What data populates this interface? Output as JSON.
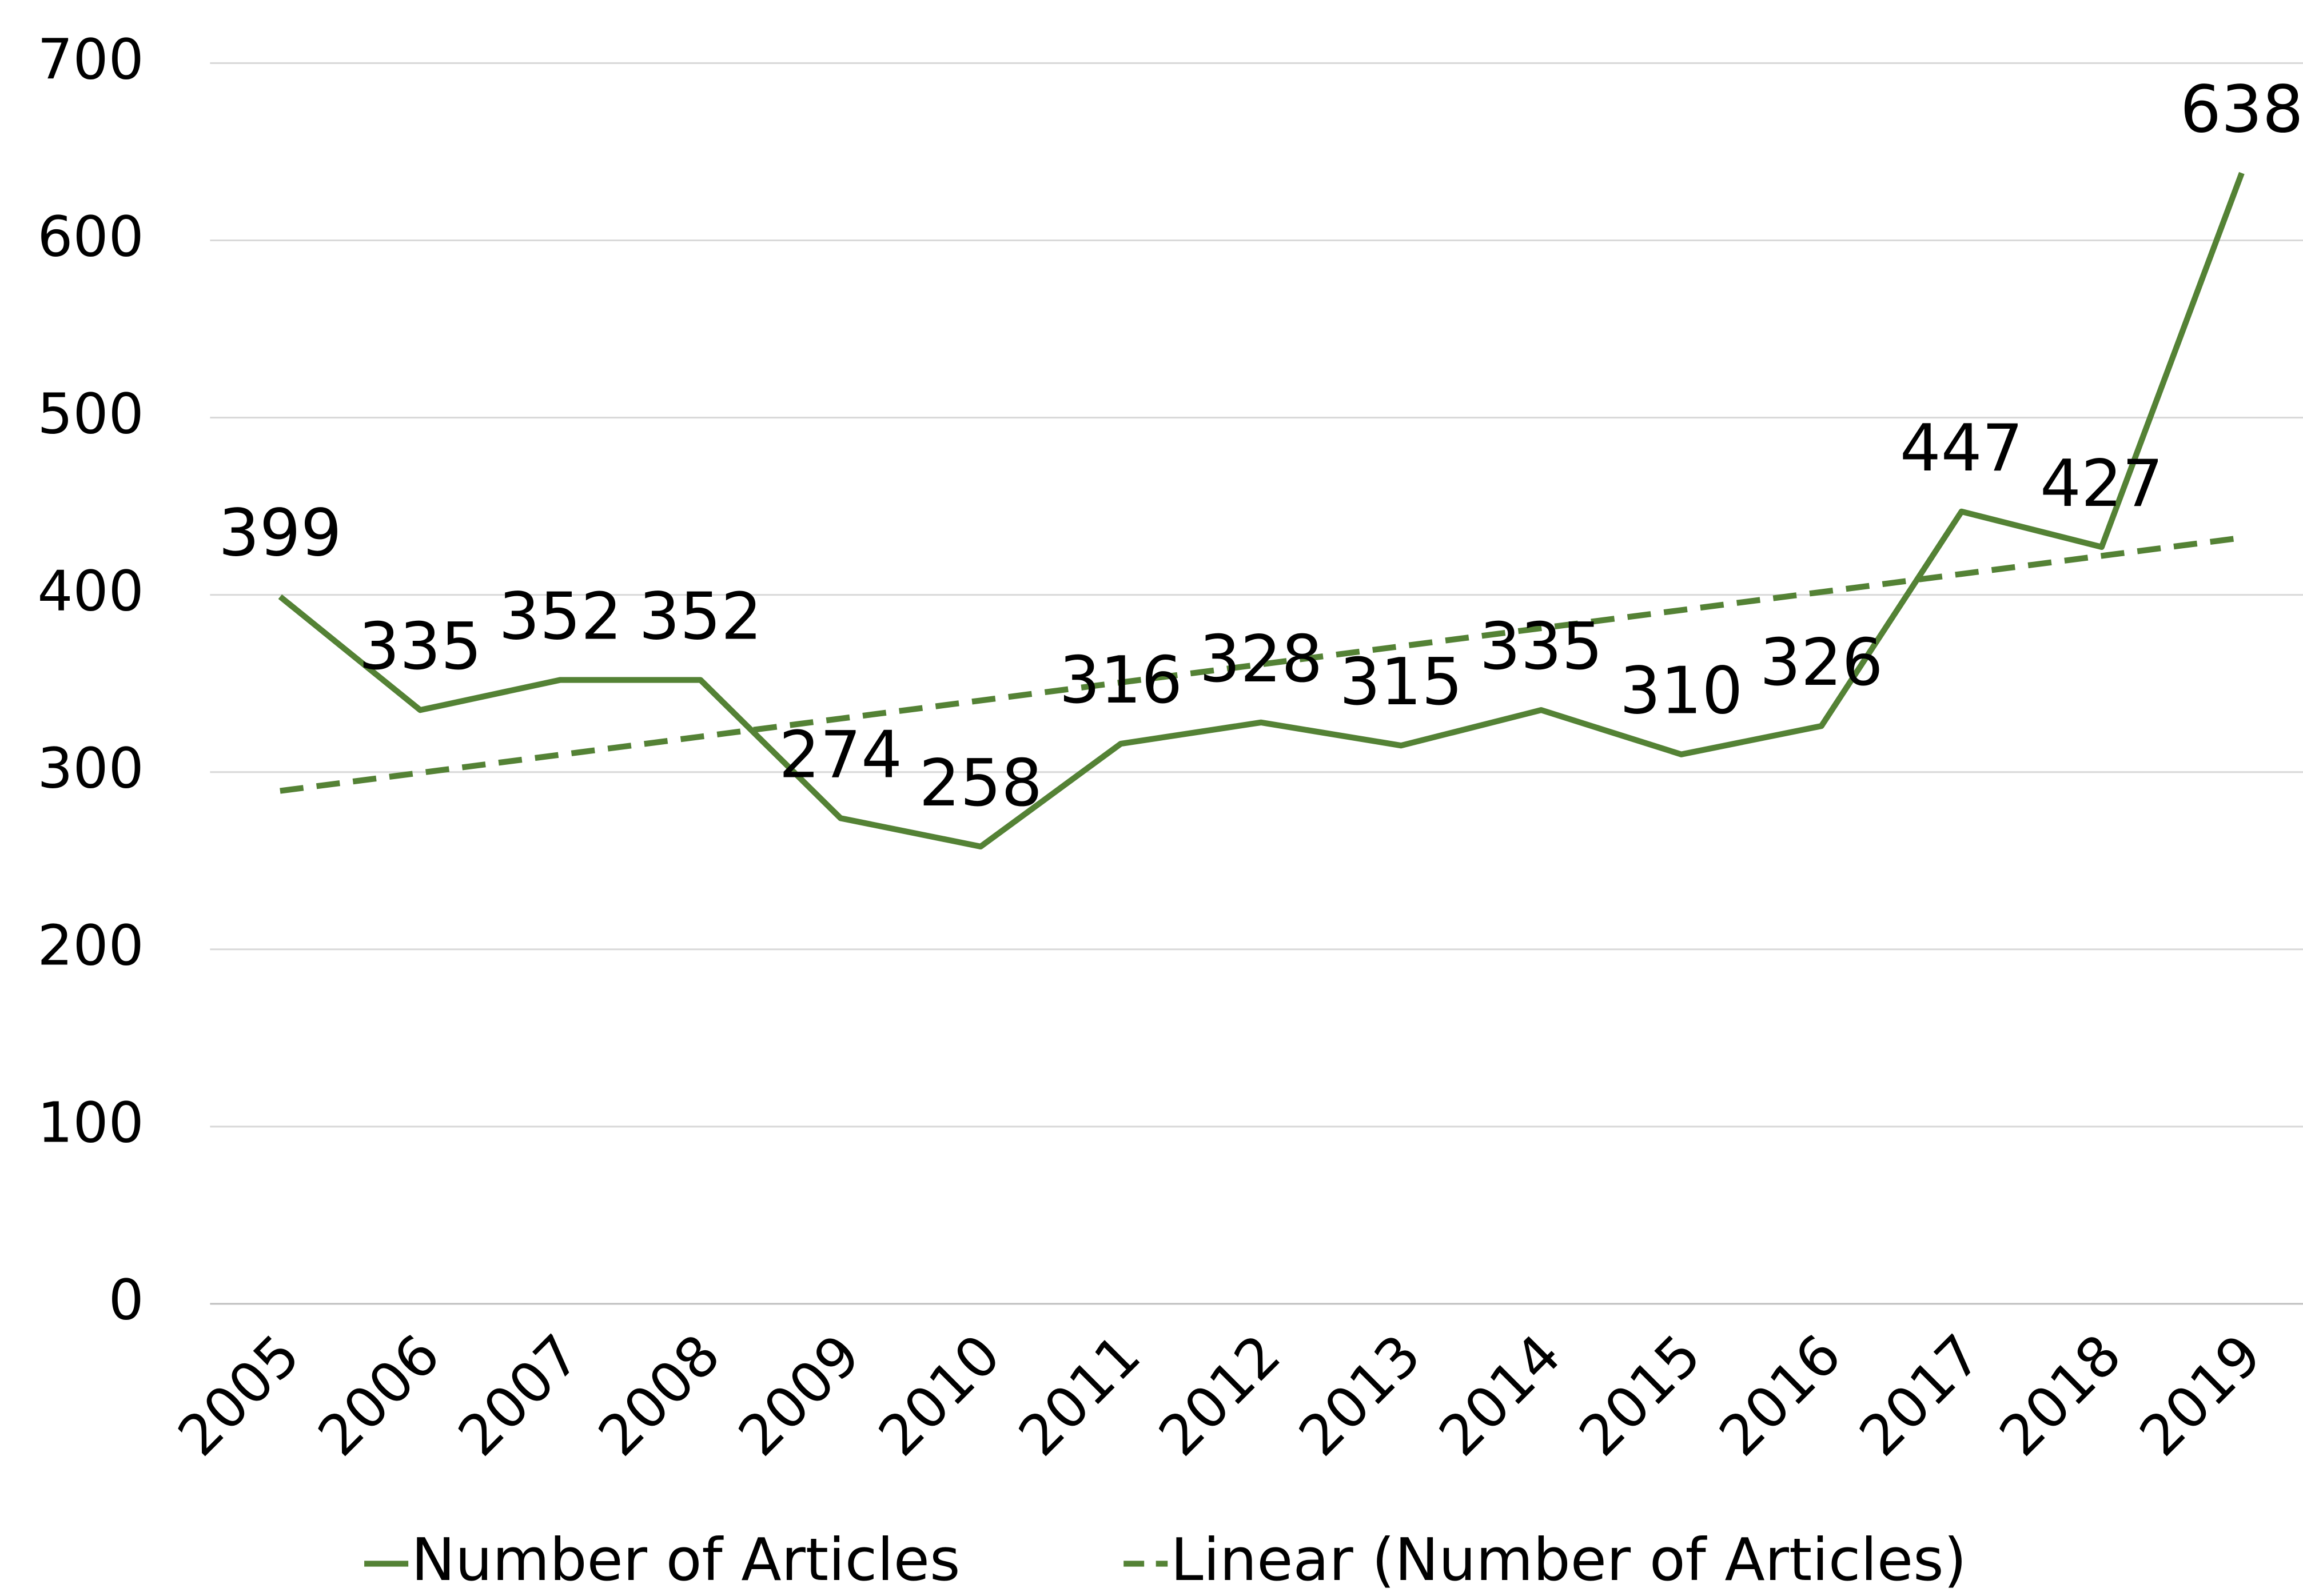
{
  "chart_data": {
    "type": "line",
    "categories": [
      "2005",
      "2006",
      "2007",
      "2008",
      "2009",
      "2010",
      "2011",
      "2012",
      "2013",
      "2014",
      "2015",
      "2016",
      "2017",
      "2018",
      "2019"
    ],
    "series": [
      {
        "name": "Number of Articles",
        "color": "#548235",
        "line_style": "solid",
        "data_labels": true,
        "values": [
          399,
          335,
          352,
          352,
          274,
          258,
          316,
          328,
          315,
          335,
          310,
          326,
          447,
          427,
          638
        ]
      },
      {
        "name": "Linear (Number of Articles)",
        "color": "#548235",
        "line_style": "dashed",
        "data_labels": false,
        "values": [
          289.4,
          299.6,
          309.8,
          320.0,
          330.2,
          340.4,
          350.6,
          360.8,
          371.0,
          381.2,
          391.4,
          401.6,
          411.8,
          422.0,
          432.2
        ]
      }
    ],
    "ylim": [
      0,
      700
    ],
    "yticks": [
      0,
      100,
      200,
      300,
      400,
      500,
      600,
      700
    ],
    "grid": true,
    "legend": "bottom"
  }
}
